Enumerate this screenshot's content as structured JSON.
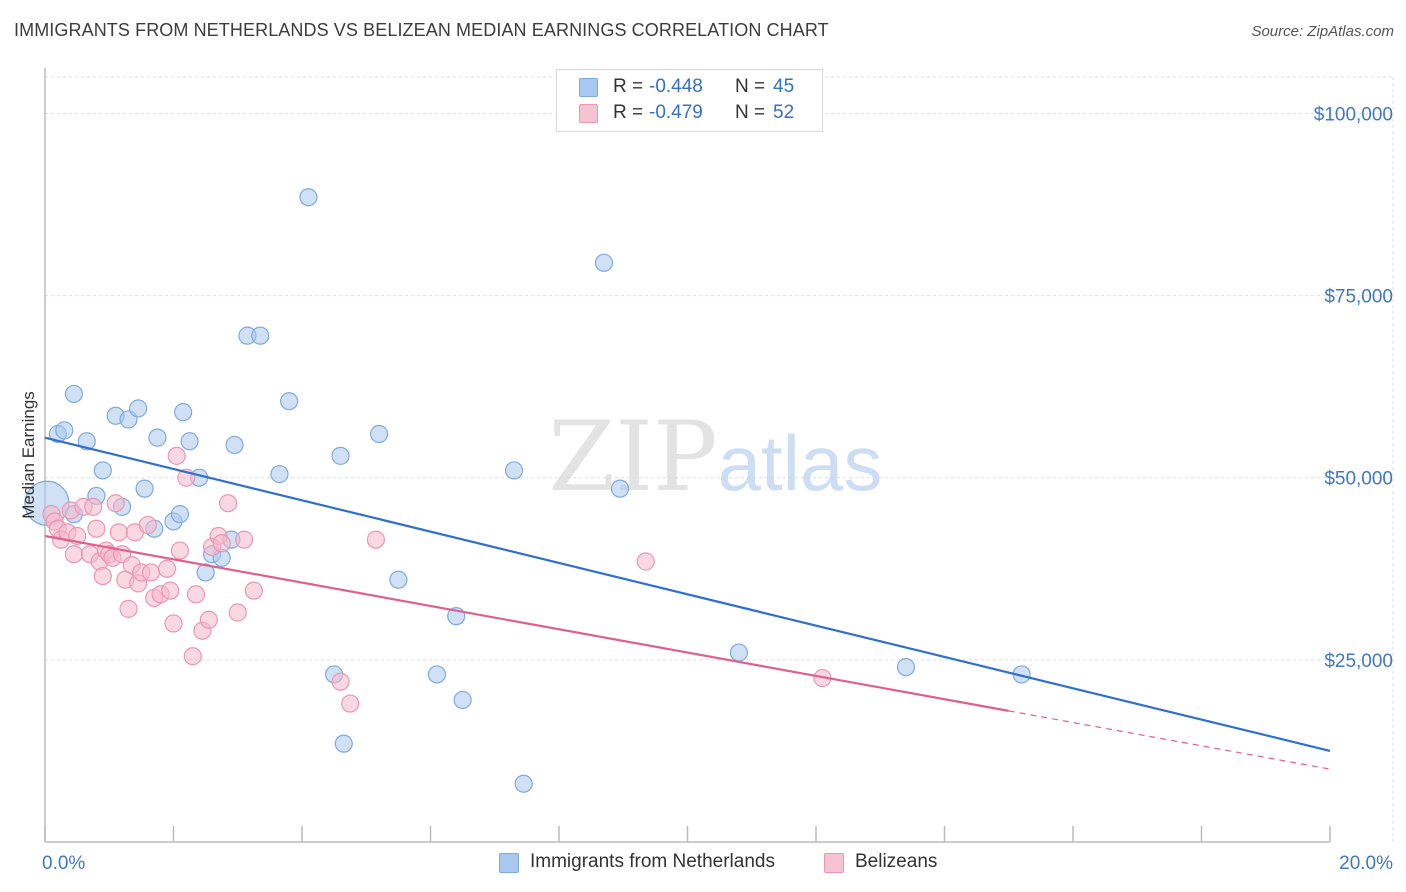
{
  "header": {
    "title": "IMMIGRANTS FROM NETHERLANDS VS BELIZEAN MEDIAN EARNINGS CORRELATION CHART",
    "source": "Source: ZipAtlas.com"
  },
  "watermark": {
    "part1": "ZIP",
    "part2": "atlas"
  },
  "legend": {
    "r_label": "R =",
    "n_label": "N =",
    "rows": [
      {
        "r": "-0.448",
        "n": "45"
      },
      {
        "r": "-0.479",
        "n": "52"
      }
    ]
  },
  "colors": {
    "series1_fill": "#a9c8ef",
    "series1_stroke": "#7faae0",
    "series1_line": "#2f6fcf",
    "series2_fill": "#f6b8cb",
    "series2_stroke": "#ec97b2",
    "series2_line": "#e0608c",
    "axis_text": "#3f78c9",
    "grid": "#dddddd"
  },
  "chart_data": {
    "type": "scatter",
    "title": "IMMIGRANTS FROM NETHERLANDS VS BELIZEAN MEDIAN EARNINGS CORRELATION CHART",
    "xlabel": "",
    "ylabel": "Median Earnings",
    "xlim": [
      0,
      20
    ],
    "ylim": [
      0,
      105000
    ],
    "x_tick_labels": [
      "0.0%",
      "20.0%"
    ],
    "y_ticks": [
      25000,
      50000,
      75000,
      100000
    ],
    "y_tick_labels": [
      "$25,000",
      "$50,000",
      "$75,000",
      "$100,000"
    ],
    "grid": true,
    "legend_position": "bottom",
    "series": [
      {
        "name": "Immigrants from Netherlands",
        "r": -0.448,
        "n": 45,
        "trend": {
          "x": [
            0,
            20
          ],
          "y": [
            55500,
            12500
          ],
          "dashed_from": null
        },
        "points": [
          {
            "x": 0.03,
            "y": 46500,
            "big": true
          },
          {
            "x": 0.2,
            "y": 56000
          },
          {
            "x": 0.3,
            "y": 56500
          },
          {
            "x": 0.45,
            "y": 61500
          },
          {
            "x": 0.65,
            "y": 55000
          },
          {
            "x": 0.8,
            "y": 47500
          },
          {
            "x": 0.9,
            "y": 51000
          },
          {
            "x": 1.1,
            "y": 58500
          },
          {
            "x": 1.3,
            "y": 58000
          },
          {
            "x": 1.45,
            "y": 59500
          },
          {
            "x": 1.55,
            "y": 48500
          },
          {
            "x": 1.7,
            "y": 43000
          },
          {
            "x": 1.75,
            "y": 55500
          },
          {
            "x": 2.0,
            "y": 44000
          },
          {
            "x": 2.1,
            "y": 45000
          },
          {
            "x": 2.15,
            "y": 59000
          },
          {
            "x": 2.25,
            "y": 55000
          },
          {
            "x": 2.4,
            "y": 50000
          },
          {
            "x": 2.5,
            "y": 37000
          },
          {
            "x": 2.6,
            "y": 39500
          },
          {
            "x": 2.75,
            "y": 39000
          },
          {
            "x": 2.9,
            "y": 41500
          },
          {
            "x": 2.95,
            "y": 54500
          },
          {
            "x": 3.15,
            "y": 69500
          },
          {
            "x": 3.35,
            "y": 69500
          },
          {
            "x": 3.65,
            "y": 50500
          },
          {
            "x": 3.8,
            "y": 60500
          },
          {
            "x": 4.1,
            "y": 88500
          },
          {
            "x": 4.5,
            "y": 23000
          },
          {
            "x": 4.6,
            "y": 53000
          },
          {
            "x": 4.65,
            "y": 13500
          },
          {
            "x": 5.2,
            "y": 56000
          },
          {
            "x": 5.5,
            "y": 36000
          },
          {
            "x": 6.1,
            "y": 23000
          },
          {
            "x": 6.4,
            "y": 31000
          },
          {
            "x": 6.5,
            "y": 19500
          },
          {
            "x": 7.3,
            "y": 51000
          },
          {
            "x": 7.45,
            "y": 8000
          },
          {
            "x": 8.7,
            "y": 79500
          },
          {
            "x": 8.95,
            "y": 48500
          },
          {
            "x": 10.8,
            "y": 26000
          },
          {
            "x": 13.4,
            "y": 24000
          },
          {
            "x": 15.2,
            "y": 23000
          },
          {
            "x": 0.45,
            "y": 45000
          },
          {
            "x": 1.2,
            "y": 46000
          }
        ]
      },
      {
        "name": "Belizeans",
        "r": -0.479,
        "n": 52,
        "trend": {
          "x": [
            0,
            20
          ],
          "y": [
            42000,
            10000
          ],
          "dashed_from": 15
        },
        "points": [
          {
            "x": 0.1,
            "y": 45000
          },
          {
            "x": 0.15,
            "y": 44000
          },
          {
            "x": 0.2,
            "y": 43000
          },
          {
            "x": 0.25,
            "y": 41500
          },
          {
            "x": 0.35,
            "y": 42500
          },
          {
            "x": 0.4,
            "y": 45500
          },
          {
            "x": 0.45,
            "y": 39500
          },
          {
            "x": 0.5,
            "y": 42000
          },
          {
            "x": 0.6,
            "y": 46000
          },
          {
            "x": 0.7,
            "y": 39500
          },
          {
            "x": 0.75,
            "y": 46000
          },
          {
            "x": 0.8,
            "y": 43000
          },
          {
            "x": 0.85,
            "y": 38500
          },
          {
            "x": 0.9,
            "y": 36500
          },
          {
            "x": 0.95,
            "y": 40000
          },
          {
            "x": 1.0,
            "y": 39500
          },
          {
            "x": 1.05,
            "y": 39000
          },
          {
            "x": 1.1,
            "y": 46500
          },
          {
            "x": 1.15,
            "y": 42500
          },
          {
            "x": 1.2,
            "y": 39500
          },
          {
            "x": 1.25,
            "y": 36000
          },
          {
            "x": 1.3,
            "y": 32000
          },
          {
            "x": 1.35,
            "y": 38000
          },
          {
            "x": 1.4,
            "y": 42500
          },
          {
            "x": 1.45,
            "y": 35500
          },
          {
            "x": 1.5,
            "y": 37000
          },
          {
            "x": 1.6,
            "y": 43500
          },
          {
            "x": 1.65,
            "y": 37000
          },
          {
            "x": 1.7,
            "y": 33500
          },
          {
            "x": 1.8,
            "y": 34000
          },
          {
            "x": 1.9,
            "y": 37500
          },
          {
            "x": 1.95,
            "y": 34500
          },
          {
            "x": 2.0,
            "y": 30000
          },
          {
            "x": 2.05,
            "y": 53000
          },
          {
            "x": 2.1,
            "y": 40000
          },
          {
            "x": 2.2,
            "y": 50000
          },
          {
            "x": 2.3,
            "y": 25500
          },
          {
            "x": 2.35,
            "y": 34000
          },
          {
            "x": 2.45,
            "y": 29000
          },
          {
            "x": 2.55,
            "y": 30500
          },
          {
            "x": 2.6,
            "y": 40500
          },
          {
            "x": 2.7,
            "y": 42000
          },
          {
            "x": 2.75,
            "y": 41000
          },
          {
            "x": 2.85,
            "y": 46500
          },
          {
            "x": 3.0,
            "y": 31500
          },
          {
            "x": 3.1,
            "y": 41500
          },
          {
            "x": 3.25,
            "y": 34500
          },
          {
            "x": 4.6,
            "y": 22000
          },
          {
            "x": 4.75,
            "y": 19000
          },
          {
            "x": 5.15,
            "y": 41500
          },
          {
            "x": 9.35,
            "y": 38500
          },
          {
            "x": 12.1,
            "y": 22500
          }
        ]
      }
    ]
  }
}
